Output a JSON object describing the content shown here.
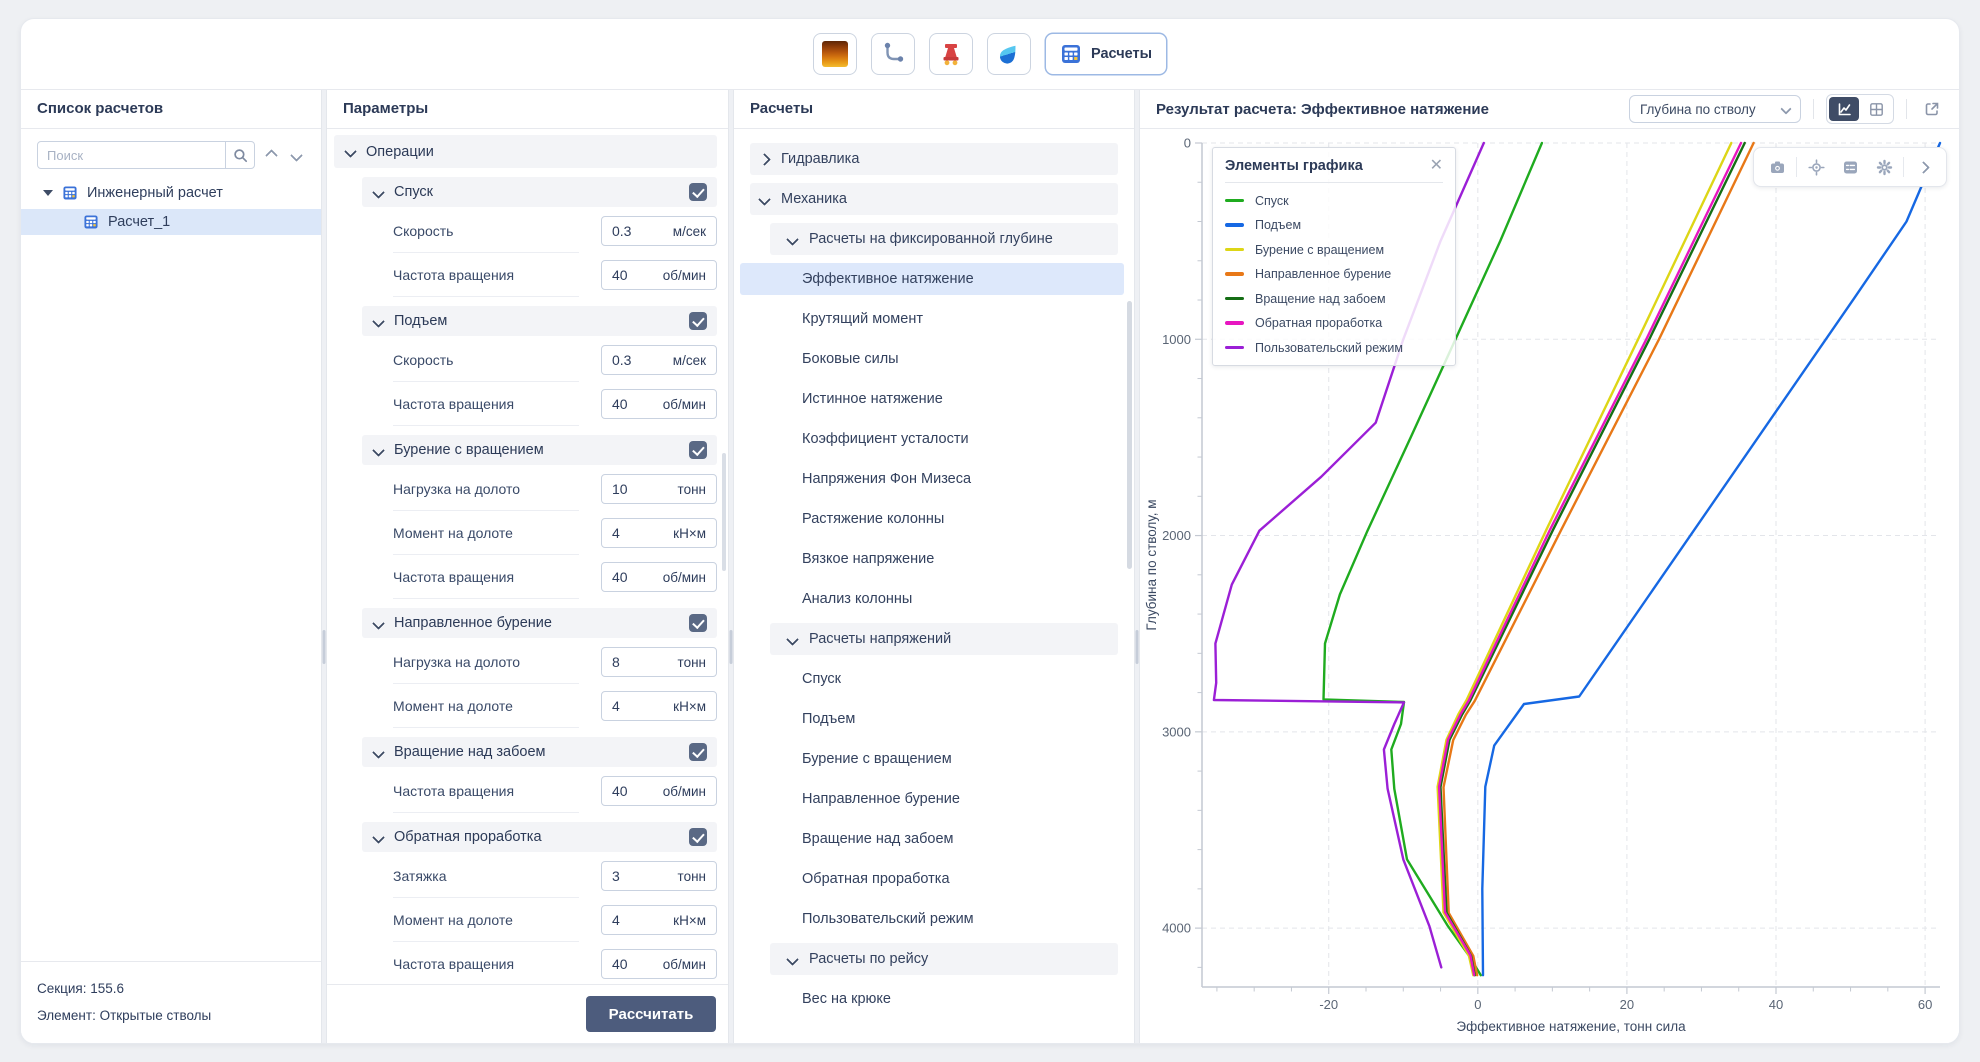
{
  "toolbar": {
    "buttons": [
      {
        "name": "lithology"
      },
      {
        "name": "trajectory"
      },
      {
        "name": "wellhead"
      },
      {
        "name": "fluids"
      },
      {
        "name": "calculations",
        "label": "Расчеты",
        "active": true
      }
    ]
  },
  "calc_list": {
    "title": "Список расчетов",
    "search_placeholder": "Поиск",
    "tree": [
      {
        "label": "Инженерный расчет",
        "level": 0,
        "expanded": true
      },
      {
        "label": "Расчет_1",
        "level": 1,
        "selected": true
      }
    ],
    "footer": {
      "section": "Секция: 155.6",
      "element": "Элемент: Открытые стволы"
    }
  },
  "parameters": {
    "title": "Параметры",
    "group": "Операции",
    "calculate_label": "Рассчитать",
    "sections": [
      {
        "title": "Спуск",
        "checked": true,
        "fields": [
          {
            "label": "Скорость",
            "value": "0.3",
            "unit": "м/сек"
          },
          {
            "label": "Частота вращения",
            "value": "40",
            "unit": "об/мин"
          }
        ]
      },
      {
        "title": "Подъем",
        "checked": true,
        "fields": [
          {
            "label": "Скорость",
            "value": "0.3",
            "unit": "м/сек"
          },
          {
            "label": "Частота вращения",
            "value": "40",
            "unit": "об/мин"
          }
        ]
      },
      {
        "title": "Бурение с вращением",
        "checked": true,
        "fields": [
          {
            "label": "Нагрузка на долото",
            "value": "10",
            "unit": "тонн"
          },
          {
            "label": "Момент на долоте",
            "value": "4",
            "unit": "кН×м"
          },
          {
            "label": "Частота вращения",
            "value": "40",
            "unit": "об/мин"
          }
        ]
      },
      {
        "title": "Направленное бурение",
        "checked": true,
        "fields": [
          {
            "label": "Нагрузка на долото",
            "value": "8",
            "unit": "тонн"
          },
          {
            "label": "Момент на долоте",
            "value": "4",
            "unit": "кН×м"
          }
        ]
      },
      {
        "title": "Вращение над забоем",
        "checked": true,
        "fields": [
          {
            "label": "Частота вращения",
            "value": "40",
            "unit": "об/мин"
          }
        ]
      },
      {
        "title": "Обратная проработка",
        "checked": true,
        "fields": [
          {
            "label": "Затяжка",
            "value": "3",
            "unit": "тонн"
          },
          {
            "label": "Момент на долоте",
            "value": "4",
            "unit": "кН×м"
          },
          {
            "label": "Частота вращения",
            "value": "40",
            "unit": "об/мин"
          }
        ]
      }
    ]
  },
  "calculations": {
    "title": "Расчеты",
    "items": [
      {
        "label": "Гидравлика",
        "kind": "group",
        "level": 0,
        "expanded": false
      },
      {
        "label": "Механика",
        "kind": "group",
        "level": 0,
        "expanded": true
      },
      {
        "label": "Расчеты на фиксированной глубине",
        "kind": "group",
        "level": 1,
        "expanded": true
      },
      {
        "label": "Эффективное натяжение",
        "kind": "item",
        "level": 2,
        "selected": true
      },
      {
        "label": "Крутящий момент",
        "kind": "item",
        "level": 2
      },
      {
        "label": "Боковые силы",
        "kind": "item",
        "level": 2
      },
      {
        "label": "Истинное натяжение",
        "kind": "item",
        "level": 2
      },
      {
        "label": "Коэффициент усталости",
        "kind": "item",
        "level": 2
      },
      {
        "label": "Напряжения Фон Мизеса",
        "kind": "item",
        "level": 2
      },
      {
        "label": "Растяжение колонны",
        "kind": "item",
        "level": 2
      },
      {
        "label": "Вязкое напряжение",
        "kind": "item",
        "level": 2
      },
      {
        "label": "Анализ колонны",
        "kind": "item",
        "level": 2
      },
      {
        "label": "Расчеты напряжений",
        "kind": "group",
        "level": 1,
        "expanded": true
      },
      {
        "label": "Спуск",
        "kind": "item",
        "level": 2
      },
      {
        "label": "Подъем",
        "kind": "item",
        "level": 2
      },
      {
        "label": "Бурение с вращением",
        "kind": "item",
        "level": 2
      },
      {
        "label": "Направленное бурение",
        "kind": "item",
        "level": 2
      },
      {
        "label": "Вращение над забоем",
        "kind": "item",
        "level": 2
      },
      {
        "label": "Обратная проработка",
        "kind": "item",
        "level": 2
      },
      {
        "label": "Пользовательский режим",
        "kind": "item",
        "level": 2
      },
      {
        "label": "Расчеты по рейсу",
        "kind": "group",
        "level": 1,
        "expanded": true
      },
      {
        "label": "Вес на крюке",
        "kind": "item",
        "level": 2
      }
    ]
  },
  "result": {
    "title": "Результат расчета: Эффективное натяжение",
    "axis_select": "Глубина по стволу",
    "legend_title": "Элементы графика"
  },
  "chart_data": {
    "type": "line",
    "title": "Результат расчета: Эффективное натяжение",
    "xlabel": "Эффективное натяжение, тонн сила",
    "ylabel": "Глубина по стволу, м",
    "xlim": [
      -37,
      62
    ],
    "ylim": [
      0,
      4300
    ],
    "y_inverted": true,
    "xticks": [
      -20,
      0,
      20,
      40,
      60
    ],
    "yticks": [
      0,
      1000,
      2000,
      3000,
      4000
    ],
    "grid": true,
    "legend_position": "top-left",
    "series": [
      {
        "name": "Спуск",
        "color": "#1fab1f",
        "points": [
          [
            8.6,
            0
          ],
          [
            3,
            500
          ],
          [
            -3,
            1000
          ],
          [
            -9,
            1500
          ],
          [
            -14.8,
            1975
          ],
          [
            -18.5,
            2300
          ],
          [
            -20.5,
            2550
          ],
          [
            -20.7,
            2835
          ],
          [
            -9.9,
            2848
          ],
          [
            -10.3,
            2960
          ],
          [
            -11.6,
            3090
          ],
          [
            -11.2,
            3290
          ],
          [
            -9.5,
            3650
          ],
          [
            -4,
            3990
          ],
          [
            -1.2,
            4140
          ],
          [
            0.4,
            4240
          ]
        ]
      },
      {
        "name": "Подъем",
        "color": "#1668e3",
        "points": [
          [
            62,
            0
          ],
          [
            57.5,
            400
          ],
          [
            50.5,
            790
          ],
          [
            13.6,
            2820
          ],
          [
            6.2,
            2858
          ],
          [
            2.2,
            3070
          ],
          [
            1,
            3280
          ],
          [
            0.6,
            3800
          ],
          [
            0.7,
            4240
          ]
        ]
      },
      {
        "name": "Бурение с вращением",
        "color": "#ddd616",
        "points": [
          [
            34,
            0
          ],
          [
            21.5,
            1000
          ],
          [
            9.2,
            1970
          ],
          [
            -1.5,
            2838
          ],
          [
            -2.6,
            2910
          ],
          [
            -4.2,
            3040
          ],
          [
            -5.4,
            3280
          ],
          [
            -4.6,
            3920
          ],
          [
            -1.2,
            4140
          ],
          [
            -0.6,
            4240
          ]
        ]
      },
      {
        "name": "Направленное бурение",
        "color": "#e87817",
        "points": [
          [
            37,
            0
          ],
          [
            24.3,
            1000
          ],
          [
            11.2,
            1970
          ],
          [
            -0.4,
            2842
          ],
          [
            -1.6,
            2912
          ],
          [
            -3.3,
            3042
          ],
          [
            -4.6,
            3282
          ],
          [
            -3.9,
            3922
          ],
          [
            -0.6,
            4142
          ],
          [
            -0.1,
            4240
          ]
        ]
      },
      {
        "name": "Вращение над забоем",
        "color": "#156e15",
        "points": [
          [
            35.8,
            0
          ],
          [
            23,
            1000
          ],
          [
            10.1,
            1970
          ],
          [
            -1,
            2840
          ],
          [
            -2.1,
            2911
          ],
          [
            -3.8,
            3041
          ],
          [
            -5,
            3281
          ],
          [
            -4.2,
            3921
          ],
          [
            -0.9,
            4141
          ],
          [
            -0.4,
            4240
          ]
        ]
      },
      {
        "name": "Обратная проработка",
        "color": "#e716c0",
        "points": [
          [
            35.3,
            0
          ],
          [
            22.6,
            1000
          ],
          [
            9.7,
            1969
          ],
          [
            -1.2,
            2839
          ],
          [
            -2.3,
            2909
          ],
          [
            -4,
            3039
          ],
          [
            -5.2,
            3279
          ],
          [
            -4.4,
            3919
          ],
          [
            -1,
            4139
          ],
          [
            -0.5,
            4239
          ]
        ]
      },
      {
        "name": "Пользовательский режим",
        "color": "#9b1fd6",
        "points": [
          [
            0.8,
            0
          ],
          [
            -5,
            500
          ],
          [
            -10,
            1000
          ],
          [
            -13.7,
            1425
          ],
          [
            -21,
            1700
          ],
          [
            -29.3,
            1975
          ],
          [
            -33,
            2250
          ],
          [
            -35.2,
            2550
          ],
          [
            -35.1,
            2750
          ],
          [
            -35.4,
            2838
          ],
          [
            -9.9,
            2850
          ],
          [
            -11.2,
            2960
          ],
          [
            -12.6,
            3090
          ],
          [
            -12.1,
            3290
          ],
          [
            -10,
            3650
          ],
          [
            -6.5,
            3990
          ],
          [
            -4.9,
            4200
          ]
        ]
      }
    ]
  }
}
